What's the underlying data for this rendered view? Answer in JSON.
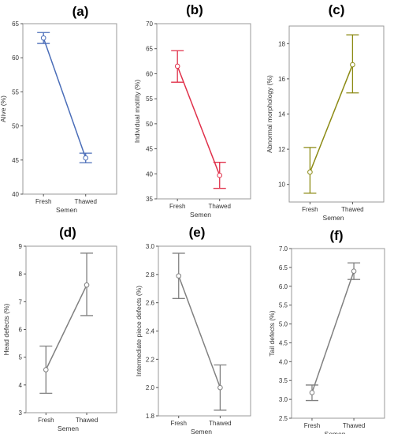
{
  "chart_data": [
    {
      "panel": "(a)",
      "type": "line",
      "categories": [
        "Fresh",
        "Thawed"
      ],
      "values": [
        62.9,
        45.3
      ],
      "error_low": [
        62.1,
        44.6
      ],
      "error_high": [
        63.7,
        46.0
      ],
      "xlabel": "Semen",
      "ylabel": "Alive (%)",
      "ylim": [
        40,
        65
      ],
      "yticks": [
        40,
        45,
        50,
        55,
        60,
        65
      ],
      "color": "#4a6db8"
    },
    {
      "panel": "(b)",
      "type": "line",
      "categories": [
        "Fresh",
        "Thawed"
      ],
      "values": [
        61.5,
        39.7
      ],
      "error_low": [
        58.3,
        37.1
      ],
      "error_high": [
        64.6,
        42.3
      ],
      "xlabel": "Semen",
      "ylabel": "Individual motility (%)",
      "ylim": [
        35,
        70
      ],
      "yticks": [
        35,
        40,
        45,
        50,
        55,
        60,
        65,
        70
      ],
      "color": "#e0304a"
    },
    {
      "panel": "(c)",
      "type": "line",
      "categories": [
        "Fresh",
        "Thawed"
      ],
      "values": [
        10.7,
        16.8
      ],
      "error_low": [
        9.5,
        15.2
      ],
      "error_high": [
        12.1,
        18.5
      ],
      "xlabel": "Semen",
      "ylabel": "Abnormal morphology (%)",
      "ylim": [
        9,
        19
      ],
      "yticks": [
        10,
        12,
        14,
        16,
        18
      ],
      "color": "#8c8a14"
    },
    {
      "panel": "(d)",
      "type": "line",
      "categories": [
        "Fresh",
        "Thawed"
      ],
      "values": [
        4.55,
        7.6
      ],
      "error_low": [
        3.7,
        6.5
      ],
      "error_high": [
        5.4,
        8.75
      ],
      "xlabel": "Semen",
      "ylabel": "Head defects (%)",
      "ylim": [
        3,
        9
      ],
      "yticks": [
        3,
        4,
        5,
        6,
        7,
        8,
        9
      ],
      "color": "#808080"
    },
    {
      "panel": "(e)",
      "type": "line",
      "categories": [
        "Fresh",
        "Thawed"
      ],
      "values": [
        2.79,
        2.0
      ],
      "error_low": [
        2.63,
        1.84
      ],
      "error_high": [
        2.95,
        2.16
      ],
      "xlabel": "Semen",
      "ylabel": "Intermediate piece defects (%)",
      "ylim": [
        1.8,
        3.0
      ],
      "yticks": [
        1.8,
        2.0,
        2.2,
        2.4,
        2.6,
        2.8,
        3.0
      ],
      "ytick_labels": [
        "1.8",
        "2.0",
        "2.2",
        "2.4",
        "2.6",
        "2.8",
        "3.0"
      ],
      "color": "#808080"
    },
    {
      "panel": "(f)",
      "type": "line",
      "categories": [
        "Fresh",
        "Thawed"
      ],
      "values": [
        3.18,
        6.4
      ],
      "error_low": [
        2.97,
        6.18
      ],
      "error_high": [
        3.38,
        6.62
      ],
      "xlabel": "Semen",
      "ylabel": "Tail defects (%)",
      "ylim": [
        2.5,
        7.0
      ],
      "yticks": [
        2.5,
        3.0,
        3.5,
        4.0,
        4.5,
        5.0,
        5.5,
        6.0,
        6.5,
        7.0
      ],
      "ytick_labels": [
        "2.5",
        "3.0",
        "3.5",
        "4.0",
        "4.5",
        "5.0",
        "5.5",
        "6.0",
        "6.5",
        "7.0"
      ],
      "color": "#808080"
    }
  ]
}
